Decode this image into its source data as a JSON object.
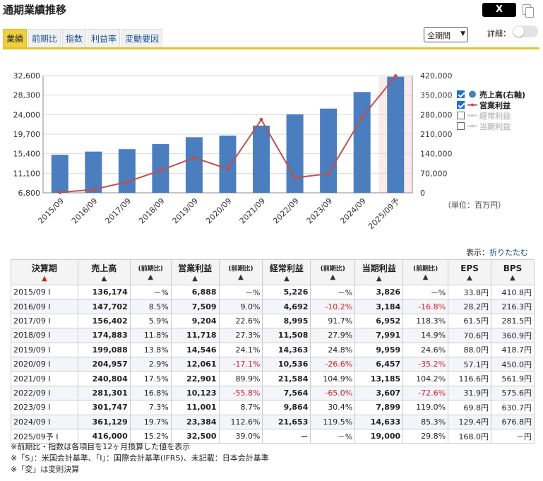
{
  "header": {
    "title": "通期業績推移",
    "share_label": "X",
    "tabs": [
      "業績",
      "前期比",
      "指数",
      "利益率",
      "変動要因"
    ],
    "period_select": "全期間",
    "detail_label": "詳細："
  },
  "legend": [
    {
      "label": "売上高(右軸)",
      "checked": true,
      "marker": "dot",
      "color": "#4a7ebf"
    },
    {
      "label": "営業利益",
      "checked": true,
      "marker": "line",
      "color": "#c0504d"
    },
    {
      "label": "経常利益",
      "checked": false,
      "marker": "line",
      "color": "#cccccc"
    },
    {
      "label": "当期利益",
      "checked": false,
      "marker": "line",
      "color": "#cccccc"
    }
  ],
  "unit_label": "（単位：百万円）",
  "display": {
    "label": "表示：",
    "link": "折りたたむ"
  },
  "chart_data": {
    "type": "bar",
    "categories": [
      "2015/09",
      "2016/09",
      "2017/09",
      "2018/09",
      "2019/09",
      "2020/09",
      "2021/09",
      "2022/09",
      "2023/09",
      "2024/09",
      "2025/09予"
    ],
    "series": [
      {
        "name": "売上高(右軸)",
        "type": "bar",
        "axis": "right",
        "color": "#4a7ebf",
        "values": [
          136174,
          147702,
          156402,
          174883,
          199088,
          204957,
          240804,
          281301,
          301747,
          361129,
          416000
        ]
      },
      {
        "name": "営業利益",
        "type": "line",
        "axis": "left",
        "color": "#c0504d",
        "values": [
          6888,
          7509,
          9204,
          11718,
          14546,
          12061,
          22901,
          10123,
          11001,
          23384,
          32500
        ]
      }
    ],
    "left_ticks": [
      "6,800",
      "11,100",
      "15,400",
      "19,700",
      "24,000",
      "28,300",
      "32,600"
    ],
    "left_range": [
      6800,
      32600
    ],
    "right_ticks": [
      "0",
      "70,000",
      "140,000",
      "210,000",
      "280,000",
      "350,000",
      "420,000"
    ],
    "right_range": [
      0,
      420000
    ],
    "forecast_index": 10,
    "grid": true
  },
  "table": {
    "headers": [
      {
        "label": "決算期",
        "sub": "",
        "arrow": "▲",
        "arrow_red": true
      },
      {
        "label": "売上高",
        "sub": "",
        "arrow": "▲"
      },
      {
        "label": "",
        "sub": "(前期比)",
        "arrow": "▲"
      },
      {
        "label": "営業利益",
        "sub": "",
        "arrow": "▲"
      },
      {
        "label": "",
        "sub": "(前期比)",
        "arrow": "▲"
      },
      {
        "label": "経常利益",
        "sub": "",
        "arrow": "▲"
      },
      {
        "label": "",
        "sub": "(前期比)",
        "arrow": "▲"
      },
      {
        "label": "当期利益",
        "sub": "",
        "arrow": "▲"
      },
      {
        "label": "",
        "sub": "(前期比)",
        "arrow": "▲"
      },
      {
        "label": "EPS",
        "sub": "",
        "arrow": "▲"
      },
      {
        "label": "BPS",
        "sub": "",
        "arrow": "▲"
      }
    ],
    "rows": [
      [
        "2015/09 I",
        "136,174",
        "－%",
        "6,888",
        "－%",
        "5,226",
        "－%",
        "3,826",
        "－%",
        "33.8円",
        "410.8円"
      ],
      [
        "2016/09 I",
        "147,702",
        "8.5%",
        "7,509",
        "9.0%",
        "4,692",
        "-10.2%",
        "3,184",
        "-16.8%",
        "28.2円",
        "216.3円"
      ],
      [
        "2017/09 I",
        "156,402",
        "5.9%",
        "9,204",
        "22.6%",
        "8,995",
        "91.7%",
        "6,952",
        "118.3%",
        "61.5円",
        "281.5円"
      ],
      [
        "2018/09 I",
        "174,883",
        "11.8%",
        "11,718",
        "27.3%",
        "11,508",
        "27.9%",
        "7,991",
        "14.9%",
        "70.6円",
        "360.9円"
      ],
      [
        "2019/09 I",
        "199,088",
        "13.8%",
        "14,546",
        "24.1%",
        "14,363",
        "24.8%",
        "9,959",
        "24.6%",
        "88.0円",
        "418.7円"
      ],
      [
        "2020/09 I",
        "204,957",
        "2.9%",
        "12,061",
        "-17.1%",
        "10,536",
        "-26.6%",
        "6,457",
        "-35.2%",
        "57.1円",
        "450.0円"
      ],
      [
        "2021/09 I",
        "240,804",
        "17.5%",
        "22,901",
        "89.9%",
        "21,584",
        "104.9%",
        "13,185",
        "104.2%",
        "116.6円",
        "561.9円"
      ],
      [
        "2022/09 I",
        "281,301",
        "16.8%",
        "10,123",
        "-55.8%",
        "7,564",
        "-65.0%",
        "3,607",
        "-72.6%",
        "31.9円",
        "575.6円"
      ],
      [
        "2023/09 I",
        "301,747",
        "7.3%",
        "11,001",
        "8.7%",
        "9,864",
        "30.4%",
        "7,899",
        "119.0%",
        "69.8円",
        "630.7円"
      ],
      [
        "2024/09 I",
        "361,129",
        "19.7%",
        "23,384",
        "112.6%",
        "21,653",
        "119.5%",
        "14,633",
        "85.3%",
        "129.4円",
        "676.8円"
      ],
      [
        "2025/09予 I",
        "416,000",
        "15.2%",
        "32,500",
        "39.0%",
        "－",
        "－%",
        "19,000",
        "29.8%",
        "168.0円",
        "－円"
      ]
    ]
  },
  "notes": [
    "※前期比・指数は各項目を12ヶ月換算した値を表示",
    "※「S」：米国会計基準、「I」：国際会計基準(IFRS)、未記載：日本会計基準",
    "※「変」は変則決算"
  ]
}
